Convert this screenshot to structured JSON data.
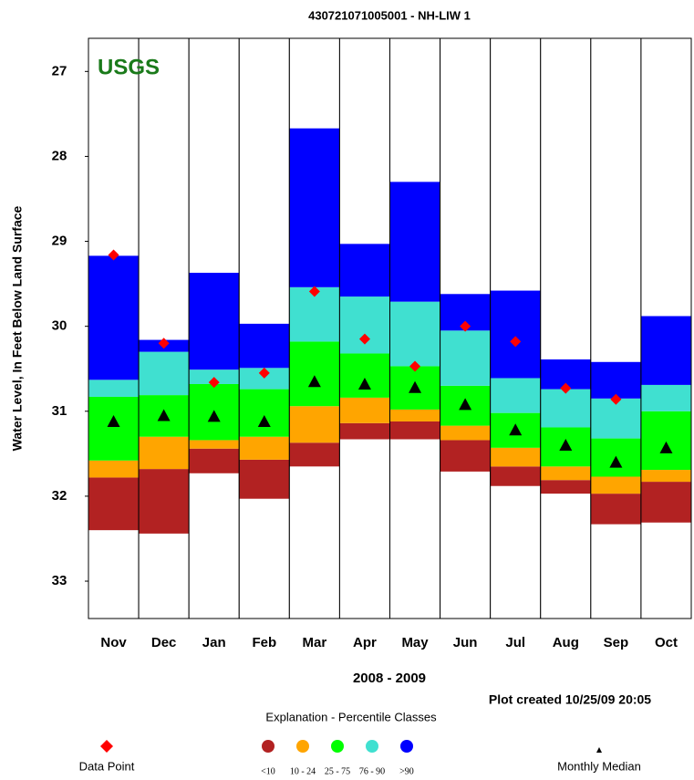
{
  "chart_data": {
    "type": "percentile-bar",
    "title": "430721071005001 - NH-LIW    1",
    "watermark": "USGS",
    "y_label": "Water Level, In Feet Below Land Surface",
    "x_label": "2008 - 2009",
    "note": "Plot created 10/25/09 20:05",
    "legend_title": "Explanation - Percentile Classes",
    "y_inverted": true,
    "ylim": [
      26.61,
      33.44
    ],
    "yticks": [
      27,
      28,
      29,
      30,
      31,
      32,
      33
    ],
    "categories": [
      "Nov",
      "Dec",
      "Jan",
      "Feb",
      "Mar",
      "Apr",
      "May",
      "Jun",
      "Jul",
      "Aug",
      "Sep",
      "Oct"
    ],
    "series": [
      {
        "name": "<10",
        "color": "#b22222",
        "values": [
          32.4,
          32.44,
          31.73,
          32.03,
          31.65,
          31.33,
          31.33,
          31.71,
          31.88,
          31.97,
          32.33,
          32.31
        ]
      },
      {
        "name": "10 - 24",
        "color": "#ffa500",
        "values": [
          31.78,
          31.68,
          31.44,
          31.57,
          31.37,
          31.14,
          31.12,
          31.34,
          31.65,
          31.81,
          31.97,
          31.83
        ]
      },
      {
        "name": "25 - 75",
        "color": "#00ff00",
        "values": [
          31.58,
          31.3,
          31.34,
          31.3,
          30.94,
          30.84,
          30.98,
          31.17,
          31.43,
          31.65,
          31.77,
          31.69
        ]
      },
      {
        "name": "76 - 90",
        "color": "#40e0d0",
        "values": [
          30.83,
          30.81,
          30.68,
          30.74,
          30.18,
          30.32,
          30.47,
          30.7,
          31.02,
          31.19,
          31.32,
          31.0
        ]
      },
      {
        "name": ">90",
        "color": "#0000ff",
        "values": [
          30.63,
          30.3,
          30.51,
          30.49,
          29.54,
          29.65,
          29.71,
          30.05,
          30.61,
          30.74,
          30.85,
          30.69
        ]
      }
    ],
    "max": [
      29.17,
      30.16,
      29.37,
      29.97,
      27.67,
      29.03,
      28.3,
      29.62,
      29.58,
      30.39,
      30.42,
      29.88
    ],
    "median": {
      "name": "Monthly Median",
      "color": "#000000",
      "values": [
        31.12,
        31.05,
        31.06,
        31.12,
        30.65,
        30.68,
        30.72,
        30.92,
        31.22,
        31.4,
        31.6,
        31.43
      ]
    },
    "points": {
      "name": "Data Point",
      "color": "#ff0000",
      "values": [
        29.16,
        30.2,
        30.66,
        30.55,
        29.59,
        30.15,
        30.47,
        30.0,
        30.18,
        30.73,
        30.86,
        null
      ]
    }
  }
}
